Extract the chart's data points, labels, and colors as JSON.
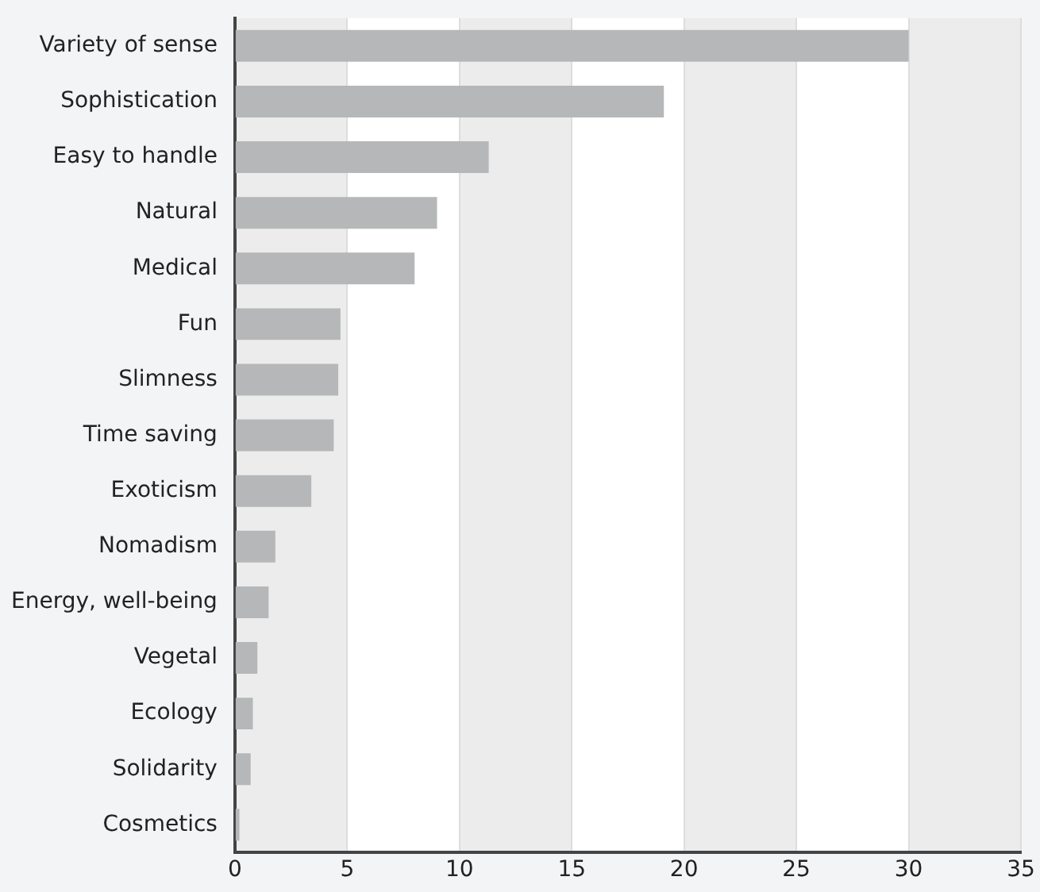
{
  "chart_data": {
    "type": "bar",
    "orientation": "horizontal",
    "categories": [
      "Variety of sense",
      "Sophistication",
      "Easy to handle",
      "Natural",
      "Medical",
      "Fun",
      "Slimness",
      "Time saving",
      "Exoticism",
      "Nomadism",
      "Energy, well-being",
      "Vegetal",
      "Ecology",
      "Solidarity",
      "Cosmetics"
    ],
    "values": [
      30,
      19.1,
      11.3,
      9.0,
      8.0,
      4.7,
      4.6,
      4.4,
      3.4,
      1.8,
      1.5,
      1.0,
      0.8,
      0.7,
      0.2
    ],
    "color": "#b6b7b8",
    "xlim": [
      0,
      35
    ],
    "xticks": [
      0,
      5,
      10,
      15,
      20,
      25,
      30,
      35
    ],
    "grid": "x"
  }
}
